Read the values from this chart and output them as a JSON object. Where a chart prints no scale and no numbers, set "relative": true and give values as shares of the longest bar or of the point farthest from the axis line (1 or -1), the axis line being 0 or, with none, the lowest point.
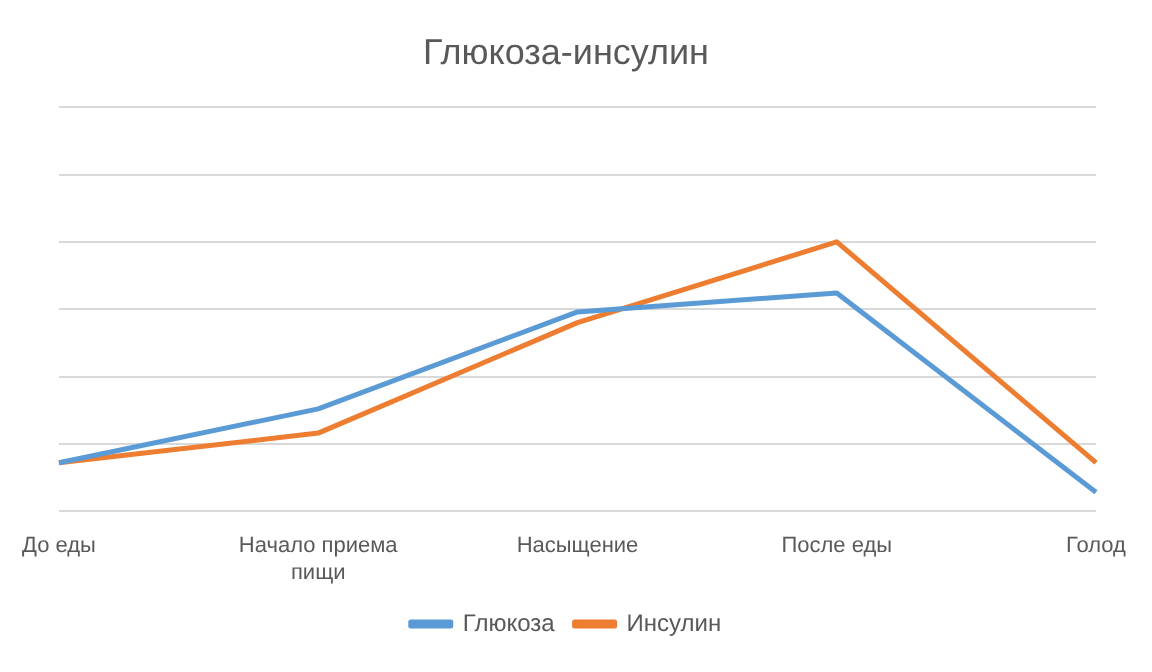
{
  "chart_data": {
    "type": "line",
    "title": "Глюкоза-инсулин",
    "relative": true,
    "categories": [
      "До еды",
      "Начало приема пищи",
      "Насыщение",
      "После еды",
      "Голод"
    ],
    "series": [
      {
        "name": "Глюкоза",
        "color": "#5b9bd5",
        "values": [
          0.18,
          0.38,
          0.74,
          0.81,
          0.07
        ]
      },
      {
        "name": "Инсулин",
        "color": "#ed7d31",
        "values": [
          0.18,
          0.29,
          0.7,
          1,
          0.18
        ]
      }
    ],
    "grid": "y",
    "legend": "bottom",
    "marker": "none",
    "line_style": "solid"
  }
}
